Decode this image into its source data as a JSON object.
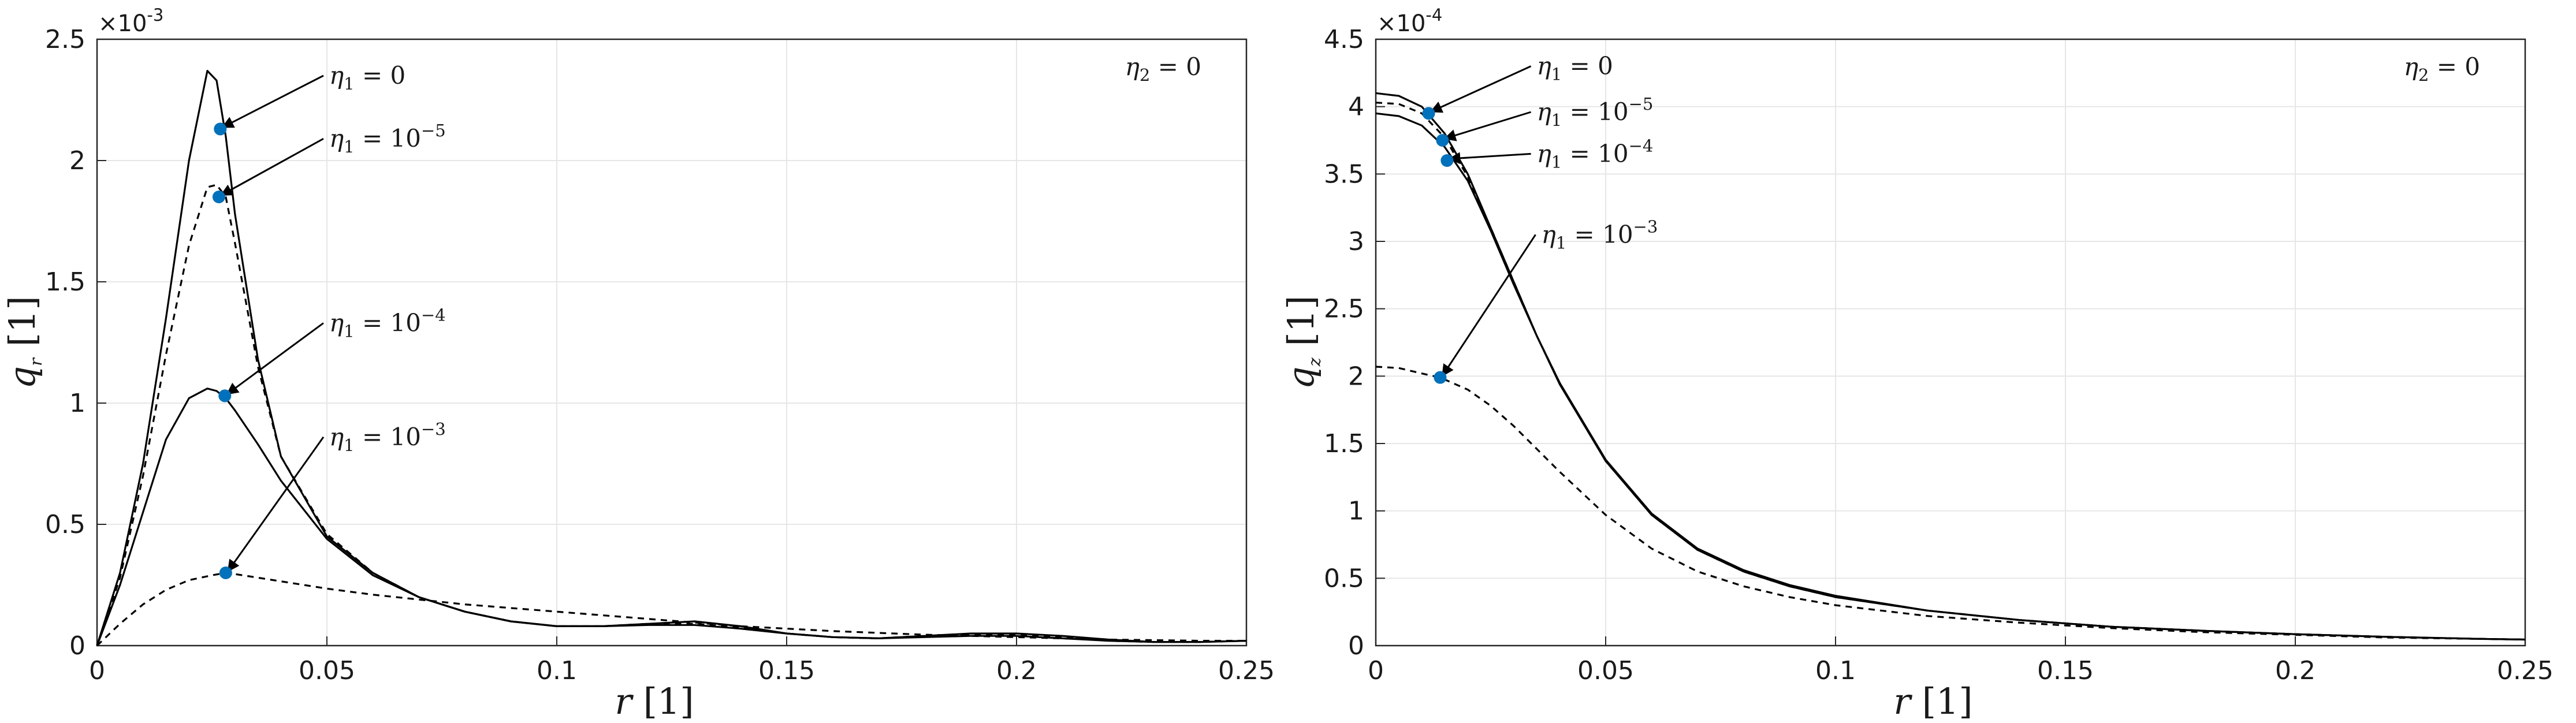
{
  "chart_data": [
    {
      "type": "line",
      "exponent_label": "×10",
      "exponent_power": "-3",
      "ylabel_var": "q",
      "ylabel_sub": "r",
      "ylabel_unit": "[1]",
      "xlabel_var": "r",
      "xlabel_unit": "[1]",
      "corner_note": {
        "var": "η",
        "sub": "2",
        "rel": " = 0"
      },
      "xlim": [
        0,
        0.25
      ],
      "ylim": [
        0,
        2.5
      ],
      "xticks": [
        "0",
        "0.05",
        "0.1",
        "0.15",
        "0.2",
        "0.25"
      ],
      "yticks": [
        "0",
        "0.5",
        "1",
        "1.5",
        "2",
        "2.5"
      ],
      "grid": true,
      "series": [
        {
          "style": "solid",
          "x": [
            0,
            0.005,
            0.01,
            0.015,
            0.02,
            0.024,
            0.026,
            0.028,
            0.03,
            0.035,
            0.04,
            0.05,
            0.06,
            0.07,
            0.08,
            0.09,
            0.1,
            0.11,
            0.12,
            0.13,
            0.14,
            0.15,
            0.16,
            0.17,
            0.18,
            0.19,
            0.2,
            0.21,
            0.22,
            0.23,
            0.24,
            0.25
          ],
          "y": [
            0,
            0.3,
            0.75,
            1.35,
            2.0,
            2.37,
            2.33,
            2.1,
            1.78,
            1.18,
            0.78,
            0.45,
            0.3,
            0.2,
            0.14,
            0.1,
            0.08,
            0.08,
            0.09,
            0.1,
            0.08,
            0.05,
            0.035,
            0.03,
            0.04,
            0.05,
            0.05,
            0.04,
            0.025,
            0.015,
            0.015,
            0.02
          ]
        },
        {
          "style": "dashed",
          "x": [
            0,
            0.005,
            0.01,
            0.015,
            0.02,
            0.024,
            0.026,
            0.028,
            0.03,
            0.035,
            0.04,
            0.05,
            0.06,
            0.07,
            0.08,
            0.09,
            0.1,
            0.11,
            0.12,
            0.13,
            0.14,
            0.15,
            0.16,
            0.17,
            0.18,
            0.19,
            0.2,
            0.21,
            0.22,
            0.23,
            0.24,
            0.25
          ],
          "y": [
            0,
            0.28,
            0.7,
            1.2,
            1.65,
            1.89,
            1.9,
            1.85,
            1.66,
            1.15,
            0.78,
            0.46,
            0.3,
            0.2,
            0.14,
            0.1,
            0.08,
            0.08,
            0.09,
            0.09,
            0.075,
            0.05,
            0.035,
            0.03,
            0.04,
            0.045,
            0.045,
            0.035,
            0.02,
            0.015,
            0.015,
            0.02
          ]
        },
        {
          "style": "solid",
          "x": [
            0,
            0.005,
            0.01,
            0.015,
            0.02,
            0.024,
            0.026,
            0.028,
            0.03,
            0.035,
            0.04,
            0.05,
            0.06,
            0.07,
            0.08,
            0.09,
            0.1,
            0.11,
            0.12,
            0.13,
            0.14,
            0.15,
            0.16,
            0.17,
            0.18,
            0.19,
            0.2,
            0.21,
            0.22,
            0.23,
            0.24,
            0.25
          ],
          "y": [
            0,
            0.25,
            0.55,
            0.85,
            1.02,
            1.06,
            1.05,
            1.02,
            0.97,
            0.83,
            0.68,
            0.44,
            0.29,
            0.2,
            0.14,
            0.1,
            0.08,
            0.08,
            0.085,
            0.085,
            0.07,
            0.05,
            0.035,
            0.03,
            0.035,
            0.04,
            0.04,
            0.03,
            0.02,
            0.015,
            0.015,
            0.02
          ]
        },
        {
          "style": "dashed",
          "x": [
            0,
            0.005,
            0.01,
            0.015,
            0.02,
            0.025,
            0.028,
            0.03,
            0.035,
            0.04,
            0.05,
            0.06,
            0.07,
            0.08,
            0.09,
            0.1,
            0.12,
            0.14,
            0.16,
            0.18,
            0.2,
            0.22,
            0.24,
            0.25
          ],
          "y": [
            0,
            0.09,
            0.17,
            0.23,
            0.27,
            0.29,
            0.3,
            0.295,
            0.28,
            0.265,
            0.235,
            0.21,
            0.19,
            0.17,
            0.155,
            0.14,
            0.11,
            0.08,
            0.06,
            0.045,
            0.035,
            0.025,
            0.02,
            0.02
          ]
        }
      ],
      "markers": [
        {
          "x": 0.0268,
          "y": 2.13
        },
        {
          "x": 0.0265,
          "y": 1.85
        },
        {
          "x": 0.0278,
          "y": 1.03
        },
        {
          "x": 0.028,
          "y": 0.3
        }
      ],
      "annotations": [
        {
          "var": "η",
          "sub": "1",
          "rel": " = 0",
          "sup": "",
          "label_x": 0.05,
          "label_y": 2.35,
          "tip_x": 0.0268,
          "tip_y": 2.13
        },
        {
          "var": "η",
          "sub": "1",
          "rel": " = 10",
          "sup": "−5",
          "label_x": 0.05,
          "label_y": 2.09,
          "tip_x": 0.0265,
          "tip_y": 1.85
        },
        {
          "var": "η",
          "sub": "1",
          "rel": " = 10",
          "sup": "−4",
          "label_x": 0.05,
          "label_y": 1.33,
          "tip_x": 0.0278,
          "tip_y": 1.03
        },
        {
          "var": "η",
          "sub": "1",
          "rel": " = 10",
          "sup": "−3",
          "label_x": 0.05,
          "label_y": 0.86,
          "tip_x": 0.028,
          "tip_y": 0.3
        }
      ]
    },
    {
      "type": "line",
      "exponent_label": "×10",
      "exponent_power": "-4",
      "ylabel_var": "q",
      "ylabel_sub": "z",
      "ylabel_unit": "[1]",
      "xlabel_var": "r",
      "xlabel_unit": "[1]",
      "corner_note": {
        "var": "η",
        "sub": "2",
        "rel": " = 0"
      },
      "xlim": [
        0,
        0.25
      ],
      "ylim": [
        0,
        4.5
      ],
      "xticks": [
        "0",
        "0.05",
        "0.1",
        "0.15",
        "0.2",
        "0.25"
      ],
      "yticks": [
        "0",
        "0.5",
        "1",
        "1.5",
        "2",
        "2.5",
        "3",
        "3.5",
        "4",
        "4.5"
      ],
      "grid": true,
      "series": [
        {
          "style": "solid",
          "x": [
            0,
            0.005,
            0.01,
            0.015,
            0.02,
            0.025,
            0.03,
            0.035,
            0.04,
            0.05,
            0.06,
            0.07,
            0.08,
            0.09,
            0.1,
            0.12,
            0.14,
            0.16,
            0.18,
            0.2,
            0.22,
            0.24,
            0.25
          ],
          "y": [
            4.1,
            4.08,
            4.0,
            3.8,
            3.5,
            3.1,
            2.7,
            2.3,
            1.95,
            1.38,
            0.98,
            0.72,
            0.56,
            0.45,
            0.37,
            0.26,
            0.19,
            0.14,
            0.11,
            0.085,
            0.065,
            0.05,
            0.045
          ]
        },
        {
          "style": "dashed",
          "x": [
            0,
            0.005,
            0.01,
            0.015,
            0.02,
            0.025,
            0.03,
            0.035,
            0.04,
            0.05,
            0.06,
            0.07,
            0.08,
            0.09,
            0.1,
            0.12,
            0.14,
            0.16,
            0.18,
            0.2,
            0.22,
            0.24,
            0.25
          ],
          "y": [
            4.03,
            4.02,
            3.95,
            3.77,
            3.48,
            3.1,
            2.7,
            2.3,
            1.95,
            1.37,
            0.97,
            0.71,
            0.55,
            0.44,
            0.36,
            0.26,
            0.19,
            0.14,
            0.11,
            0.085,
            0.065,
            0.05,
            0.045
          ]
        },
        {
          "style": "solid",
          "x": [
            0,
            0.005,
            0.01,
            0.015,
            0.02,
            0.025,
            0.03,
            0.035,
            0.04,
            0.05,
            0.06,
            0.07,
            0.08,
            0.09,
            0.1,
            0.12,
            0.14,
            0.16,
            0.18,
            0.2,
            0.22,
            0.24,
            0.25
          ],
          "y": [
            3.95,
            3.93,
            3.86,
            3.7,
            3.45,
            3.08,
            2.68,
            2.3,
            1.94,
            1.37,
            0.97,
            0.71,
            0.55,
            0.44,
            0.36,
            0.26,
            0.19,
            0.14,
            0.11,
            0.085,
            0.065,
            0.05,
            0.045
          ]
        },
        {
          "style": "dashed",
          "x": [
            0,
            0.005,
            0.01,
            0.014,
            0.02,
            0.025,
            0.03,
            0.035,
            0.04,
            0.05,
            0.06,
            0.07,
            0.08,
            0.09,
            0.1,
            0.12,
            0.14,
            0.16,
            0.18,
            0.2,
            0.22,
            0.24,
            0.25
          ],
          "y": [
            2.07,
            2.06,
            2.02,
            1.99,
            1.9,
            1.78,
            1.63,
            1.46,
            1.29,
            0.97,
            0.72,
            0.55,
            0.44,
            0.36,
            0.3,
            0.22,
            0.17,
            0.13,
            0.1,
            0.08,
            0.06,
            0.05,
            0.045
          ]
        }
      ],
      "markers": [
        {
          "x": 0.0115,
          "y": 3.95
        },
        {
          "x": 0.0145,
          "y": 3.75
        },
        {
          "x": 0.0155,
          "y": 3.6
        },
        {
          "x": 0.014,
          "y": 1.99
        }
      ],
      "annotations": [
        {
          "var": "η",
          "sub": "1",
          "rel": " = 0",
          "sup": "",
          "label_x": 0.0345,
          "label_y": 4.3,
          "tip_x": 0.0115,
          "tip_y": 3.95
        },
        {
          "var": "η",
          "sub": "1",
          "rel": " = 10",
          "sup": "−5",
          "label_x": 0.0345,
          "label_y": 3.96,
          "tip_x": 0.0145,
          "tip_y": 3.75
        },
        {
          "var": "η",
          "sub": "1",
          "rel": " = 10",
          "sup": "−4",
          "label_x": 0.0345,
          "label_y": 3.65,
          "tip_x": 0.0155,
          "tip_y": 3.6
        },
        {
          "var": "η",
          "sub": "1",
          "rel": " = 10",
          "sup": "−3",
          "label_x": 0.0355,
          "label_y": 3.05,
          "tip_x": 0.014,
          "tip_y": 1.99
        }
      ]
    }
  ]
}
